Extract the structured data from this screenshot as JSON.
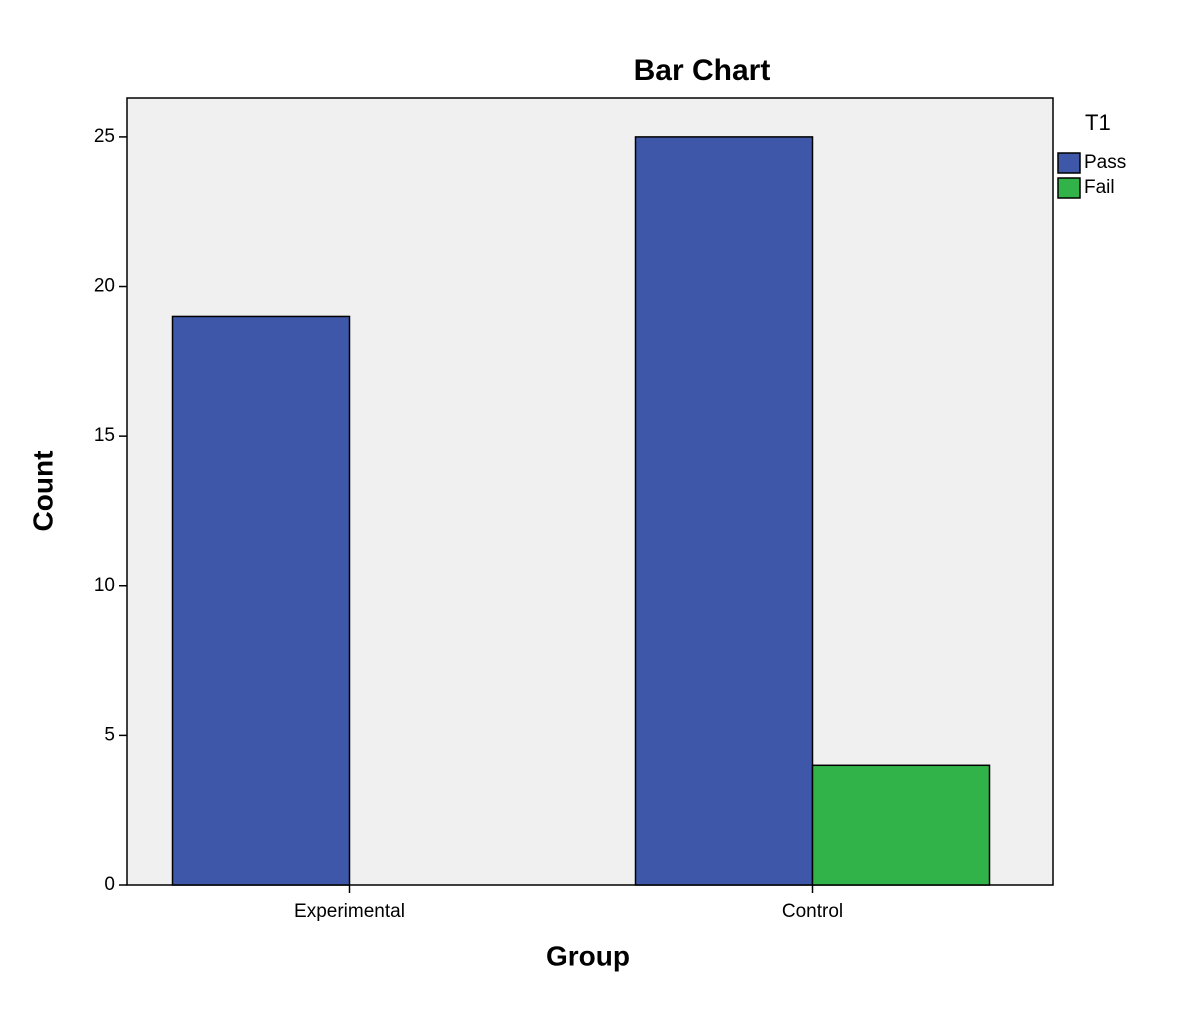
{
  "chart_data": {
    "type": "bar",
    "title": "Bar Chart",
    "x_label": "Group",
    "y_label": "Count",
    "categories": [
      "Experimental",
      "Control"
    ],
    "series": [
      {
        "name": "Pass",
        "color": "#3f57a8",
        "values": [
          19,
          25
        ]
      },
      {
        "name": "Fail",
        "color": "#32b34a",
        "values": [
          0,
          4
        ]
      }
    ],
    "legend_title": "T1",
    "legend_position": "right",
    "ylim": [
      0,
      26.3
    ],
    "yticks": [
      0,
      5,
      10,
      15,
      20,
      25
    ],
    "grid": false
  }
}
